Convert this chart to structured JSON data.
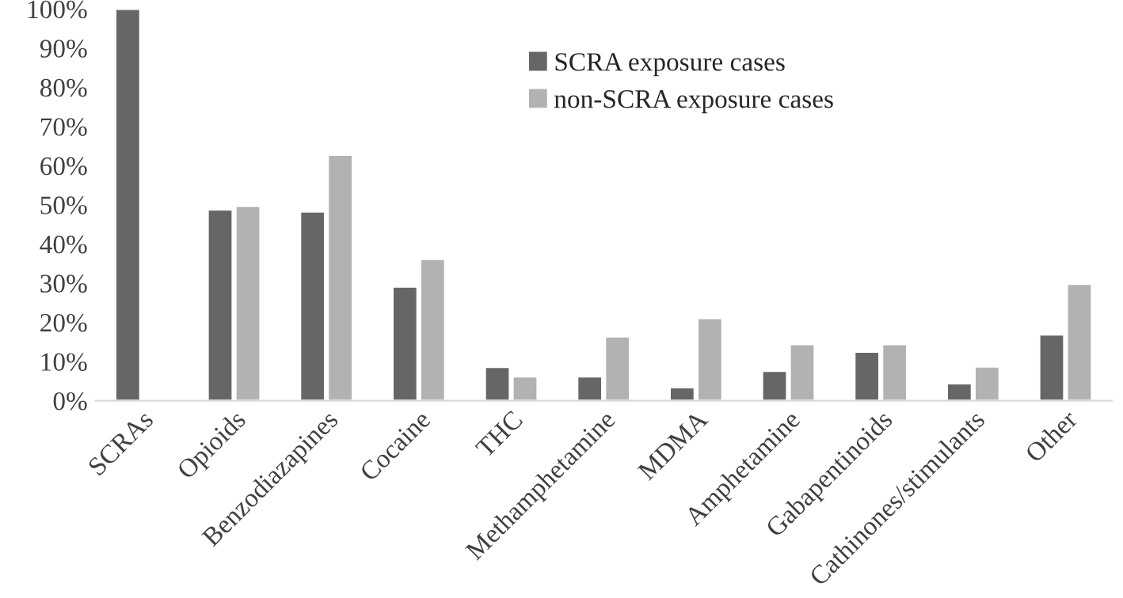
{
  "chart_data": {
    "type": "bar",
    "categories": [
      "SCRAs",
      "Opioids",
      "Benzodiazapines",
      "Cocaine",
      "THC",
      "Methamphetamine",
      "MDMA",
      "Amphetamine",
      "Gabapentinoids",
      "Cathinones/stimulants",
      "Other"
    ],
    "series": [
      {
        "name": "SCRA exposure cases",
        "color": "#666666",
        "values": [
          100,
          48.8,
          48.3,
          29.1,
          8.6,
          6.2,
          3.4,
          7.6,
          12.5,
          4.4,
          16.9
        ]
      },
      {
        "name": "non-SCRA exposure cases",
        "color": "#b2b2b2",
        "values": [
          null,
          49.7,
          62.8,
          36.2,
          6.2,
          16.4,
          21.1,
          14.4,
          14.4,
          8.7,
          29.8
        ]
      }
    ],
    "ylim": [
      0,
      100
    ],
    "yticks": [
      {
        "value": 0,
        "label": "0%"
      },
      {
        "value": 10,
        "label": "10%"
      },
      {
        "value": 20,
        "label": "20%"
      },
      {
        "value": 30,
        "label": "30%"
      },
      {
        "value": 40,
        "label": "40%"
      },
      {
        "value": 50,
        "label": "50%"
      },
      {
        "value": 60,
        "label": "60%"
      },
      {
        "value": 70,
        "label": "70%"
      },
      {
        "value": 80,
        "label": "80%"
      },
      {
        "value": 90,
        "label": "90%"
      },
      {
        "value": 100,
        "label": "100%"
      }
    ],
    "grid": false,
    "legend": "top right"
  }
}
